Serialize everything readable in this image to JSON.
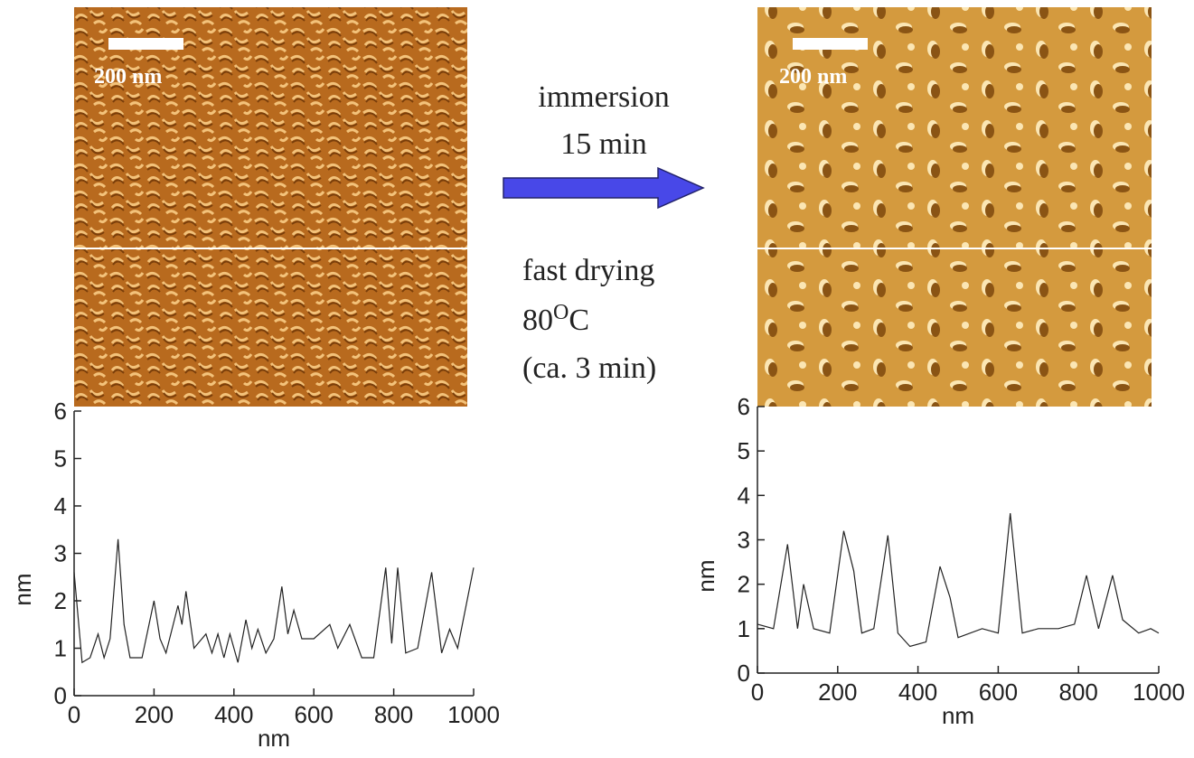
{
  "images": [
    {
      "scale_bar": "200 nm"
    },
    {
      "scale_bar": "200 nm"
    }
  ],
  "process": {
    "step1_line1": "immersion",
    "step1_line2": "15 min",
    "step2_line1": "fast drying",
    "step2_temp": "80",
    "step2_temp_sup": "O",
    "step2_temp_unit": "C",
    "step2_line3": "(ca. 3 min)"
  },
  "chart_data": [
    {
      "type": "line",
      "xlabel": "nm",
      "ylabel": "nm",
      "x": [
        0,
        20,
        40,
        60,
        75,
        90,
        110,
        125,
        140,
        170,
        200,
        215,
        230,
        260,
        270,
        280,
        300,
        330,
        345,
        360,
        375,
        390,
        410,
        430,
        445,
        460,
        480,
        500,
        520,
        535,
        550,
        570,
        600,
        640,
        660,
        690,
        720,
        750,
        780,
        795,
        810,
        830,
        860,
        895,
        920,
        940,
        960,
        1000
      ],
      "series": [
        {
          "color": "#222222",
          "values": [
            2.6,
            0.7,
            0.8,
            1.3,
            0.8,
            1.2,
            3.3,
            1.5,
            0.8,
            0.8,
            2.0,
            1.2,
            0.9,
            1.9,
            1.5,
            2.2,
            1.0,
            1.3,
            0.9,
            1.3,
            0.8,
            1.3,
            0.7,
            1.6,
            1.0,
            1.4,
            0.9,
            1.2,
            2.3,
            1.3,
            1.8,
            1.2,
            1.2,
            1.5,
            1.0,
            1.5,
            0.8,
            0.8,
            2.7,
            1.1,
            2.7,
            0.9,
            1.0,
            2.6,
            0.9,
            1.4,
            1.0,
            2.7
          ]
        }
      ],
      "xlim": [
        0,
        1000
      ],
      "ylim": [
        0,
        6
      ],
      "xticks": [
        0,
        200,
        400,
        600,
        800,
        1000
      ],
      "yticks": [
        0,
        1,
        2,
        3,
        4,
        5,
        6
      ]
    },
    {
      "type": "line",
      "xlabel": "nm",
      "ylabel": "nm",
      "x": [
        0,
        40,
        75,
        100,
        115,
        140,
        180,
        215,
        240,
        260,
        290,
        325,
        350,
        380,
        420,
        455,
        480,
        500,
        560,
        600,
        630,
        660,
        700,
        750,
        790,
        820,
        850,
        885,
        910,
        950,
        980,
        1000
      ],
      "series": [
        {
          "color": "#222222",
          "values": [
            1.1,
            1.0,
            2.9,
            1.0,
            2.0,
            1.0,
            0.9,
            3.2,
            2.3,
            0.9,
            1.0,
            3.1,
            0.9,
            0.6,
            0.7,
            2.4,
            1.7,
            0.8,
            1.0,
            0.9,
            3.6,
            0.9,
            1.0,
            1.0,
            1.1,
            2.2,
            1.0,
            2.2,
            1.2,
            0.9,
            1.0,
            0.9
          ]
        }
      ],
      "xlim": [
        0,
        1000
      ],
      "ylim": [
        0,
        6
      ],
      "xticks": [
        0,
        200,
        400,
        600,
        800,
        1000
      ],
      "yticks": [
        0,
        1,
        2,
        3,
        4,
        5,
        6
      ]
    }
  ]
}
